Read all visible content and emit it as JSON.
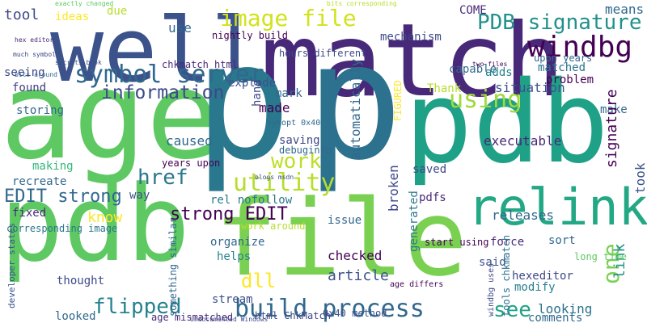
{
  "words": [
    "well",
    "match",
    "age",
    "p",
    "p",
    "pdb",
    "pdb",
    "file",
    "relink",
    "image file",
    "PDB signature",
    "windbg",
    "symbol server",
    "information",
    "using",
    "work",
    "utility",
    "href",
    "EDIT strong",
    "strong EDIT",
    "build process",
    "flipped",
    "dll",
    "see",
    "one",
    "know",
    "tool",
    "ideas",
    "due",
    "use",
    "seeing",
    "found",
    "storing",
    "making",
    "recreate",
    "fixed",
    "corresponding image",
    "mechanism",
    "capable",
    "adds",
    "situation",
    "problem",
    "matched",
    "make",
    "signature",
    "COME",
    "means",
    "executable",
    "releases",
    "took",
    "force",
    "sort",
    "hexeditor",
    "modify",
    "looking",
    "comments",
    "link",
    "long time",
    "nightly build",
    "hours different",
    "chkmatch html",
    "explode",
    "mark",
    "made",
    "saving",
    "debuginfo",
    "caused",
    "years upon",
    "rel nofollow",
    "way",
    "organize",
    "helps",
    "stream",
    "thought",
    "looked",
    "article",
    "checked",
    "issue",
    "saved",
    "pdfs",
    "said",
    "Thank",
    "generated",
    "broken",
    "automatically",
    "FIGURED",
    "hand",
    "windbg uses",
    "tools chkmatch",
    "developer states",
    "something similar",
    "start using",
    "work around",
    "0x40 method",
    "html ChkMatch",
    "age mismatched",
    "age differs",
    "symopt 0x40",
    "hex editor",
    "much symbol",
    "bits around",
    "secrets book",
    "two files",
    "blogs msdn",
    "Undocumented Windows",
    "upon years",
    "exactly changed",
    "bits corresponding"
  ]
}
